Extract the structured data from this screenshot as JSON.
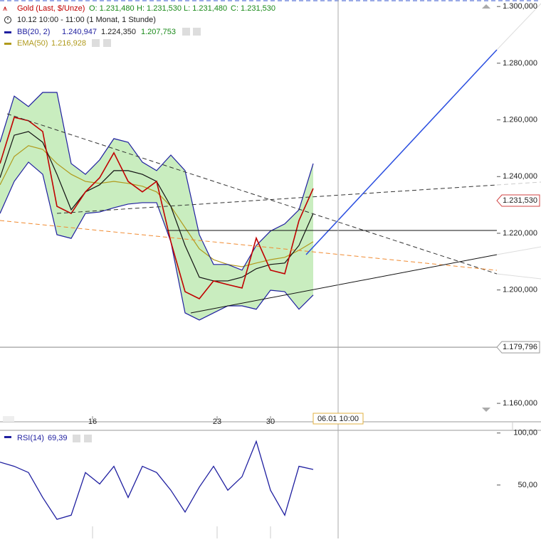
{
  "chart_data": {
    "type": "line",
    "period": "10.12 10:00 - 11:00 (1 Monat, 1 Stunde)",
    "x": [
      0,
      4,
      8,
      12,
      16,
      20,
      24,
      28,
      32,
      36,
      40,
      44,
      48,
      52,
      56,
      60,
      64,
      68,
      72,
      76,
      80,
      84,
      88
    ],
    "xlim": [
      0,
      144
    ],
    "xticks": [
      {
        "value": 26,
        "label": "16"
      },
      {
        "value": 61,
        "label": "23"
      },
      {
        "value": 76,
        "label": "30"
      }
    ],
    "ylim": [
      1.1555,
      1.3023
    ],
    "yticks": [
      {
        "value": 1.3,
        "label": "1.300,000"
      },
      {
        "value": 1.28,
        "label": "1.280,000"
      },
      {
        "value": 1.26,
        "label": "1.260,000"
      },
      {
        "value": 1.24,
        "label": "1.240,000"
      },
      {
        "value": 1.22,
        "label": "1.220,000"
      },
      {
        "value": 1.2,
        "label": "1.200,000"
      },
      {
        "value": 1.16,
        "label": "1.160,000"
      }
    ],
    "series": [
      {
        "name": "Gold (Last, $/Unze)",
        "color": "#c00000",
        "readings": [
          "O: 1.231,480",
          "H: 1.231,530",
          "L: 1.231,480",
          "C: 1.231,530"
        ],
        "values": [
          1.2446,
          1.2609,
          1.2597,
          1.2559,
          1.2295,
          1.227,
          1.2346,
          1.2396,
          1.2484,
          1.2383,
          1.2346,
          1.2383,
          1.217,
          1.1994,
          1.1969,
          1.2032,
          1.2019,
          1.2007,
          1.2183,
          1.207,
          1.2057,
          1.2245,
          1.2358
        ]
      },
      {
        "name": "BB(20, 2)",
        "color": "#1f1fa0",
        "fill": "#c9edbf",
        "readings": [
          "1.240,947",
          "1.224,350",
          "1.207,753"
        ],
        "upper": [
          1.2521,
          1.2684,
          1.2647,
          1.2697,
          1.2697,
          1.2446,
          1.2408,
          1.2459,
          1.2534,
          1.2521,
          1.2451,
          1.2421,
          1.2476,
          1.2421,
          1.2195,
          1.209,
          1.209,
          1.207,
          1.2157,
          1.2208,
          1.2233,
          1.2283,
          1.2446
        ],
        "middle": [
          1.2396,
          1.2546,
          1.2559,
          1.2521,
          1.2408,
          1.2283,
          1.2346,
          1.2371,
          1.2421,
          1.2421,
          1.2408,
          1.2383,
          1.2295,
          1.2157,
          1.2045,
          1.2032,
          1.2032,
          1.2045,
          1.2075,
          1.209,
          1.2095,
          1.2157,
          1.227
        ],
        "lower": [
          1.227,
          1.2383,
          1.2451,
          1.2408,
          1.2195,
          1.2182,
          1.227,
          1.2275,
          1.229,
          1.2303,
          1.2308,
          1.2308,
          1.217,
          1.1919,
          1.1894,
          1.1919,
          1.1944,
          1.1944,
          1.1932,
          1.1999,
          1.1994,
          1.1932,
          1.1982
        ]
      },
      {
        "name": "EMA(50)",
        "color": "#b09a1c",
        "readings": [
          "1.216,928"
        ],
        "values": [
          1.2371,
          1.2471,
          1.2509,
          1.2496,
          1.2446,
          1.2408,
          1.2383,
          1.2376,
          1.2383,
          1.2376,
          1.2366,
          1.2346,
          1.2295,
          1.222,
          1.2145,
          1.2107,
          1.209,
          1.2082,
          1.2095,
          1.2107,
          1.2115,
          1.214,
          1.217
        ]
      }
    ],
    "last_price": {
      "value": 1.23153,
      "label": "1.231,530"
    },
    "hline": {
      "value": 1.179796,
      "label": "1.179,796"
    },
    "cursor": {
      "value": 95,
      "label": "06.01 10:00"
    },
    "rsi": {
      "name": "RSI(14)",
      "reading": "69,39",
      "color": "#1f1fa0",
      "ylim": [
        0,
        106
      ],
      "yticks": [
        {
          "value": 100,
          "label": "100,00"
        },
        {
          "value": 50,
          "label": "50,00"
        }
      ],
      "values": [
        72,
        68,
        62,
        38,
        17,
        21,
        62,
        51,
        68,
        38,
        68,
        62,
        45,
        24,
        48,
        68,
        45,
        58,
        92,
        45,
        21,
        68,
        65
      ]
    }
  }
}
